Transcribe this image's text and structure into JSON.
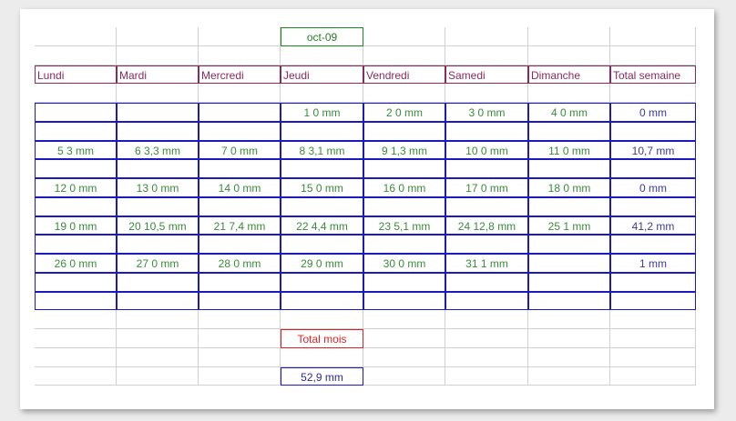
{
  "month": "oct-09",
  "headers": [
    "Lundi",
    "Mardi",
    "Mercredi",
    "Jeudi",
    "Vendredi",
    "Samedi",
    "Dimanche",
    "Total semaine"
  ],
  "weeks": [
    {
      "days": [
        null,
        null,
        null,
        {
          "n": "1",
          "v": "0 mm"
        },
        {
          "n": "2",
          "v": "0 mm"
        },
        {
          "n": "3",
          "v": "0 mm"
        },
        {
          "n": "4",
          "v": "0 mm"
        }
      ],
      "total": "0 mm"
    },
    {
      "days": [
        {
          "n": "5",
          "v": "3 mm"
        },
        {
          "n": "6",
          "v": "3,3 mm"
        },
        {
          "n": "7",
          "v": "0 mm"
        },
        {
          "n": "8",
          "v": "3,1 mm"
        },
        {
          "n": "9",
          "v": "1,3 mm"
        },
        {
          "n": "10",
          "v": "0 mm"
        },
        {
          "n": "11",
          "v": "0 mm"
        }
      ],
      "total": "10,7 mm"
    },
    {
      "days": [
        {
          "n": "12",
          "v": "0 mm"
        },
        {
          "n": "13",
          "v": "0 mm"
        },
        {
          "n": "14",
          "v": "0 mm"
        },
        {
          "n": "15",
          "v": "0 mm"
        },
        {
          "n": "16",
          "v": "0 mm"
        },
        {
          "n": "17",
          "v": "0 mm"
        },
        {
          "n": "18",
          "v": "0 mm"
        }
      ],
      "total": "0 mm"
    },
    {
      "days": [
        {
          "n": "19",
          "v": "0 mm"
        },
        {
          "n": "20",
          "v": "10,5 mm"
        },
        {
          "n": "21",
          "v": "7,4 mm"
        },
        {
          "n": "22",
          "v": "4,4 mm"
        },
        {
          "n": "23",
          "v": "5,1 mm"
        },
        {
          "n": "24",
          "v": "12,8 mm"
        },
        {
          "n": "25",
          "v": "1 mm"
        }
      ],
      "total": "41,2 mm"
    },
    {
      "days": [
        {
          "n": "26",
          "v": "0 mm"
        },
        {
          "n": "27",
          "v": "0 mm"
        },
        {
          "n": "28",
          "v": "0 mm"
        },
        {
          "n": "29",
          "v": "0 mm"
        },
        {
          "n": "30",
          "v": "0 mm"
        },
        {
          "n": "31",
          "v": "1 mm"
        },
        null
      ],
      "total": "1 mm"
    }
  ],
  "total_label": "Total mois",
  "total_value": "52,9 mm",
  "colors": {
    "header": "#8a2a5a",
    "table": "#1a1ac0",
    "day": "#3a8a3a",
    "title": "#1a8a1a",
    "total_label": "#e02020"
  }
}
